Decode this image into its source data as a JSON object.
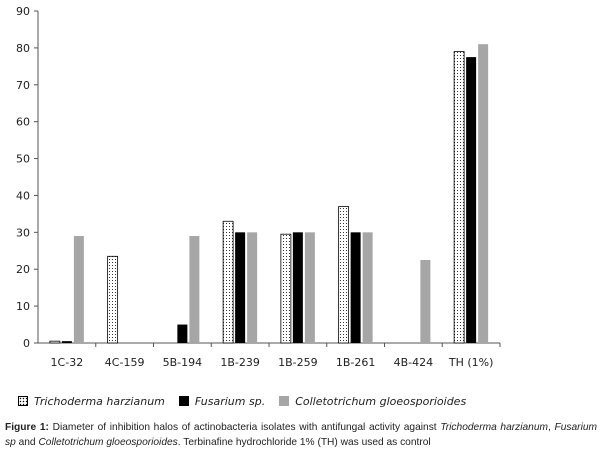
{
  "chart_data": {
    "type": "bar",
    "categories": [
      "1C-32",
      "4C-159",
      "5B-194",
      "1B-239",
      "1B-259",
      "1B-261",
      "4B-424",
      "TH (1%)"
    ],
    "series": [
      {
        "name": "Trichoderma harzianum",
        "values": [
          0.5,
          23.5,
          0,
          33,
          29.5,
          37,
          0,
          79
        ],
        "fill": "#ffffff",
        "pattern": "dotted"
      },
      {
        "name": "Fusarium sp.",
        "values": [
          0.5,
          0,
          5,
          30,
          30,
          30,
          0,
          77.5
        ],
        "fill": "#000000"
      },
      {
        "name": "Colletotrichum gloeosporioides",
        "values": [
          29,
          0,
          29,
          30,
          30,
          30,
          22.5,
          81
        ],
        "fill": "#a6a6a6"
      }
    ],
    "ylim": [
      0,
      90
    ],
    "yticks": [
      0,
      10,
      20,
      30,
      40,
      50,
      60,
      70,
      80,
      90
    ],
    "grid": false,
    "legend_position": "bottom",
    "xlabel": "",
    "ylabel": "",
    "title": ""
  },
  "caption": {
    "label": "Figure 1:",
    "text_1": " Diameter of inhibition halos of actinobacteria isolates with antifungal activity against ",
    "species_1": "Trichoderma harzianum",
    "text_2": ", ",
    "species_2": "Fusarium sp",
    "text_3": " and ",
    "species_3": "Colletotrichum gloeosporioides",
    "text_4": ". Terbinafine hydrochloride 1% (TH) was used as control"
  }
}
